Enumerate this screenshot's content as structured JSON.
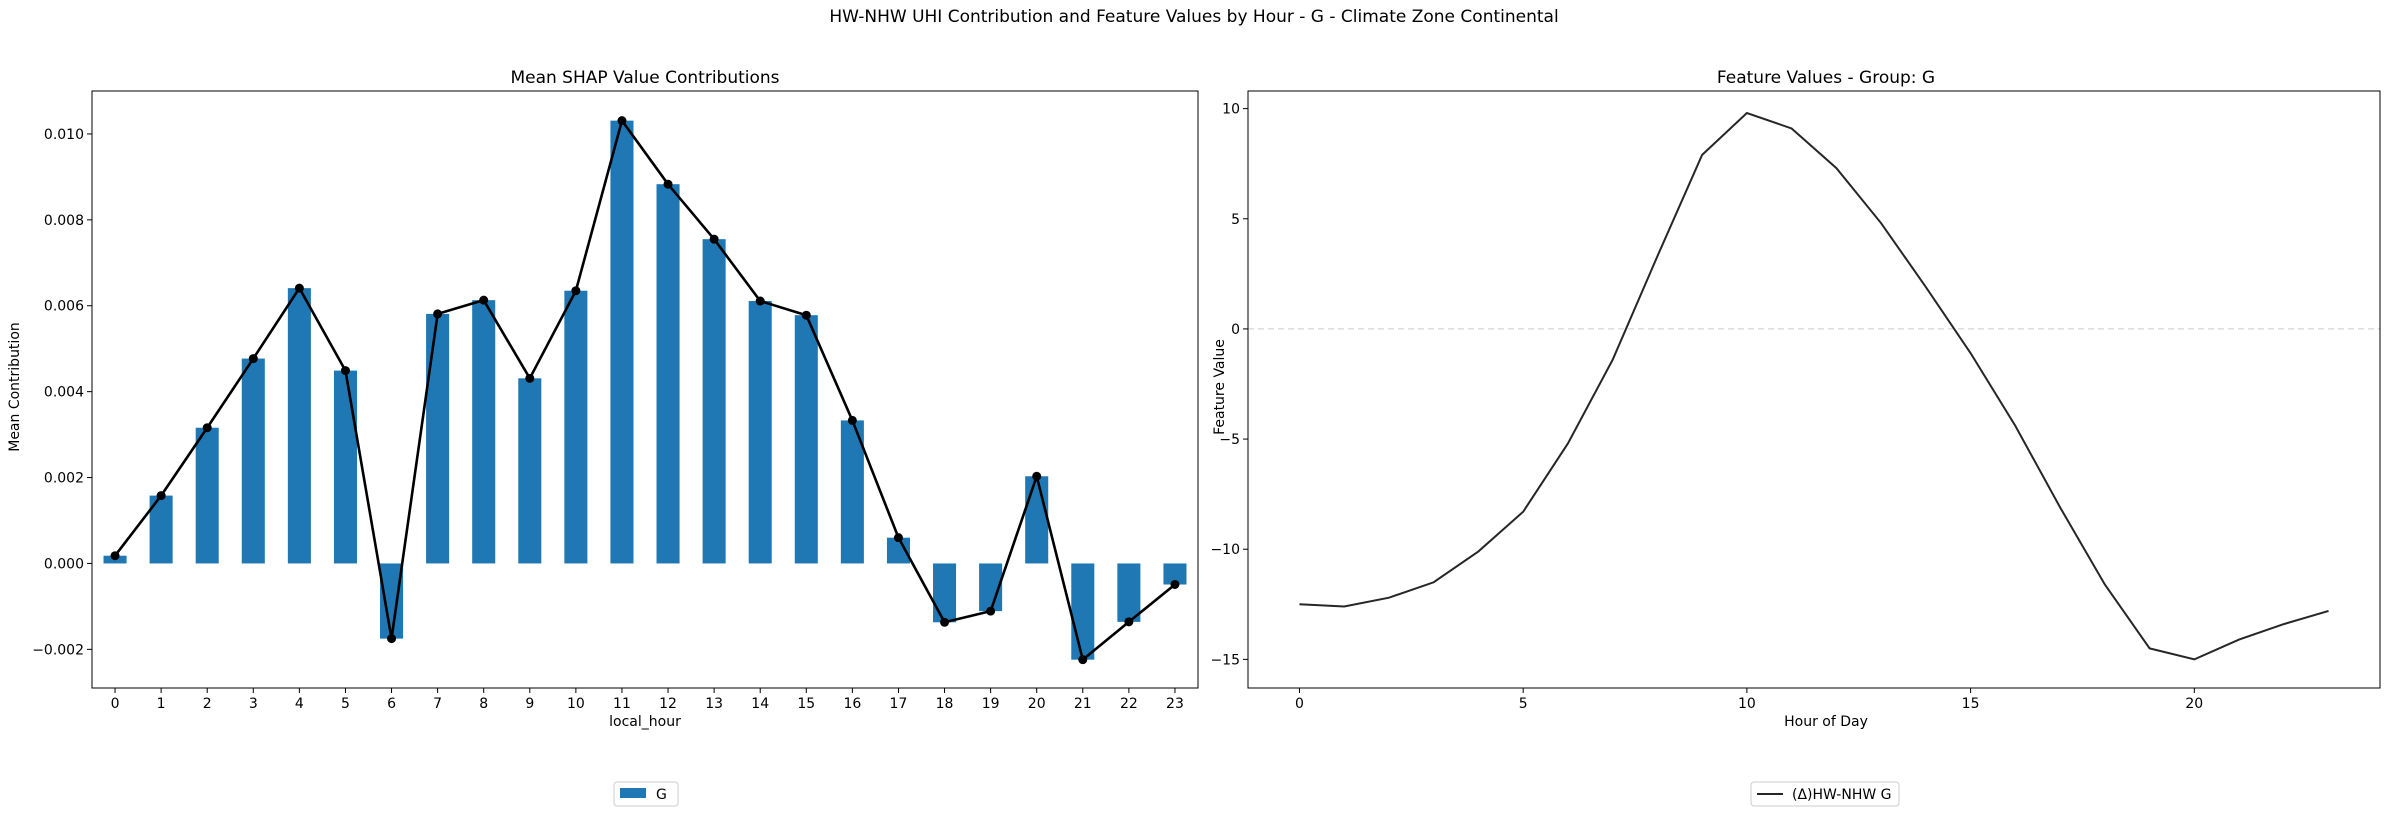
{
  "figure": {
    "suptitle": "HW-NHW UHI Contribution and Feature Values by Hour - G - Climate Zone Continental"
  },
  "chart_data": [
    {
      "type": "bar",
      "title": "Mean SHAP Value Contributions",
      "xlabel": "local_hour",
      "ylabel": "Mean Contribution",
      "categories": [
        "0",
        "1",
        "2",
        "3",
        "4",
        "5",
        "6",
        "7",
        "8",
        "9",
        "10",
        "11",
        "12",
        "13",
        "14",
        "15",
        "16",
        "17",
        "18",
        "19",
        "20",
        "21",
        "22",
        "23"
      ],
      "series": [
        {
          "name": "G",
          "values": [
            0.00018,
            0.00158,
            0.00316,
            0.00477,
            0.00641,
            0.00449,
            -0.00175,
            0.00581,
            0.00613,
            0.00431,
            0.00635,
            0.01031,
            0.00883,
            0.00755,
            0.00611,
            0.00578,
            0.00333,
            0.0006,
            -0.00137,
            -0.00111,
            0.00203,
            -0.00224,
            -0.00136,
            -0.00049
          ],
          "color": "#1f77b4"
        }
      ],
      "overlay_line_color": "#000000",
      "ylim": [
        -0.0029,
        0.011
      ],
      "yticks": [
        -0.002,
        0.0,
        0.002,
        0.004,
        0.006,
        0.008,
        0.01
      ],
      "ytick_labels": [
        "−0.002",
        "0.000",
        "0.002",
        "0.004",
        "0.006",
        "0.008",
        "0.010"
      ],
      "legend": {
        "placement": "bottom-center",
        "entries": [
          "G"
        ]
      },
      "grid": false
    },
    {
      "type": "line",
      "title": "Feature Values - Group: G",
      "xlabel": "Hour of Day",
      "ylabel": "Feature Value",
      "x": [
        0,
        1,
        2,
        3,
        4,
        5,
        6,
        7,
        8,
        9,
        10,
        11,
        12,
        13,
        14,
        15,
        16,
        17,
        18,
        19,
        20,
        21,
        22,
        23
      ],
      "series": [
        {
          "name": "(Δ)HW-NHW G",
          "values": [
            -12.5,
            -12.6,
            -12.2,
            -11.5,
            -10.1,
            -8.3,
            -5.2,
            -1.4,
            3.3,
            7.9,
            9.8,
            9.1,
            7.3,
            4.8,
            1.9,
            -1.1,
            -4.4,
            -8.1,
            -11.6,
            -14.5,
            -15.0,
            -14.1,
            -13.4,
            -12.8
          ],
          "color": "#262626"
        }
      ],
      "xlim": [
        -1.15,
        24.15
      ],
      "ylim": [
        -16.3,
        10.8
      ],
      "xticks": [
        0,
        5,
        10,
        15,
        20
      ],
      "xtick_labels": [
        "0",
        "5",
        "10",
        "15",
        "20"
      ],
      "yticks": [
        -15,
        -10,
        -5,
        0,
        5,
        10
      ],
      "ytick_labels": [
        "−15",
        "−10",
        "−5",
        "0",
        "5",
        "10"
      ],
      "reference_line": {
        "y": 0,
        "style": "dashed",
        "color": "#cccccc"
      },
      "legend": {
        "placement": "bottom-center",
        "entries": [
          "(Δ)HW-NHW G"
        ]
      },
      "grid": false
    }
  ]
}
